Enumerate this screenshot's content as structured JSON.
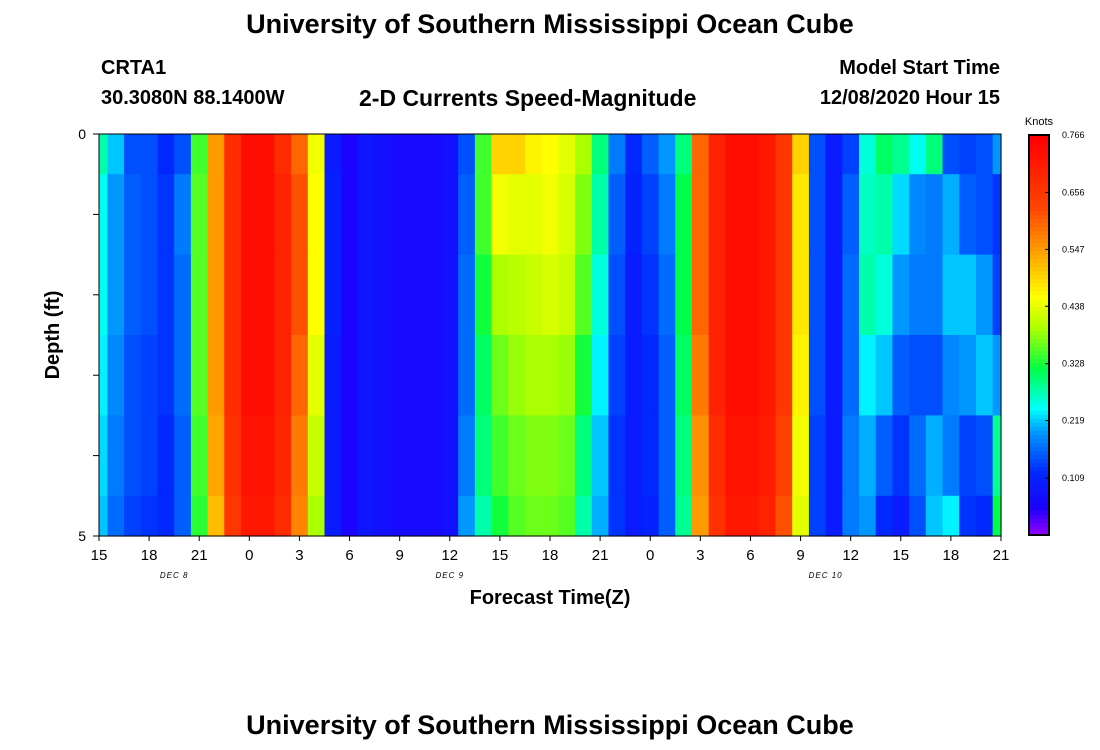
{
  "page": {
    "title": "University of Southern Mississippi Ocean Cube",
    "bottom_title": "University of Southern Mississippi Ocean Cube",
    "station_id": "CRTA1",
    "coords": "30.3080N 88.1400W",
    "plot_title": "2-D Currents Speed-Magnitude",
    "model_start_label": "Model Start Time",
    "model_start_value": "12/08/2020 Hour 15"
  },
  "chart_data": {
    "type": "heatmap",
    "title": "2-D Currents Speed-Magnitude",
    "xlabel": "Forecast Time(Z)",
    "ylabel": "Depth (ft)",
    "units": "Knots",
    "x_hours": [
      0,
      1,
      2,
      3,
      4,
      5,
      6,
      7,
      8,
      9,
      10,
      11,
      12,
      13,
      14,
      15,
      16,
      17,
      18,
      19,
      20,
      21,
      22,
      23,
      24,
      25,
      26,
      27,
      28,
      29,
      30,
      31,
      32,
      33,
      34,
      35,
      36,
      37,
      38,
      39,
      40,
      41,
      42,
      43,
      44,
      45,
      46,
      47,
      48,
      49,
      50,
      51,
      52,
      53,
      54
    ],
    "x_tick_labels": [
      "15",
      "18",
      "21",
      "0",
      "3",
      "6",
      "9",
      "12",
      "15",
      "18",
      "21",
      "0",
      "3",
      "6",
      "9",
      "12",
      "15",
      "18",
      "21"
    ],
    "day_labels": [
      {
        "text": "DEC 8",
        "hour": 4.5
      },
      {
        "text": "DEC 9",
        "hour": 21
      },
      {
        "text": "DEC 10",
        "hour": 43.5
      }
    ],
    "depth_bins": [
      "0-0.5",
      "0.5-1.5",
      "1.5-2.5",
      "2.5-3.5",
      "3.5-4.5",
      "4.5-5"
    ],
    "y_tick_labels": [
      "0",
      "5"
    ],
    "ylim": [
      0,
      5
    ],
    "colorbar": {
      "min": 0,
      "max": 0.766,
      "tick_values": [
        0.766,
        0.656,
        0.547,
        0.438,
        0.328,
        0.219,
        0.109
      ],
      "tick_labels": [
        "0.766",
        "0.656",
        "0.547",
        "0.438",
        "0.328",
        "0.219",
        "0.109"
      ]
    },
    "speeds_knots": [
      [
        0.28,
        0.22,
        0.15,
        0.15,
        0.12,
        0.15,
        0.35,
        0.55,
        0.68,
        0.74,
        0.74,
        0.68,
        0.6,
        0.45,
        0.1,
        0.06,
        0.09,
        0.08,
        0.07,
        0.07,
        0.07,
        0.08,
        0.15,
        0.35,
        0.5,
        0.5,
        0.47,
        0.46,
        0.44,
        0.4,
        0.3,
        0.18,
        0.12,
        0.16,
        0.2,
        0.3,
        0.6,
        0.7,
        0.74,
        0.74,
        0.72,
        0.66,
        0.5,
        0.15,
        0.1,
        0.14,
        0.26,
        0.31,
        0.29,
        0.25,
        0.3,
        0.15,
        0.14,
        0.15,
        0.2
      ],
      [
        0.25,
        0.2,
        0.16,
        0.15,
        0.13,
        0.18,
        0.36,
        0.55,
        0.68,
        0.74,
        0.74,
        0.7,
        0.62,
        0.46,
        0.11,
        0.06,
        0.09,
        0.08,
        0.07,
        0.07,
        0.07,
        0.08,
        0.16,
        0.35,
        0.45,
        0.44,
        0.44,
        0.45,
        0.43,
        0.38,
        0.28,
        0.16,
        0.11,
        0.14,
        0.18,
        0.32,
        0.6,
        0.7,
        0.74,
        0.74,
        0.72,
        0.66,
        0.48,
        0.15,
        0.1,
        0.16,
        0.27,
        0.28,
        0.23,
        0.19,
        0.18,
        0.21,
        0.16,
        0.15,
        0.13
      ],
      [
        0.25,
        0.2,
        0.16,
        0.15,
        0.13,
        0.17,
        0.36,
        0.55,
        0.68,
        0.74,
        0.74,
        0.7,
        0.62,
        0.46,
        0.11,
        0.06,
        0.09,
        0.08,
        0.07,
        0.07,
        0.07,
        0.08,
        0.17,
        0.33,
        0.4,
        0.41,
        0.42,
        0.43,
        0.42,
        0.36,
        0.26,
        0.15,
        0.1,
        0.13,
        0.17,
        0.32,
        0.6,
        0.7,
        0.74,
        0.74,
        0.72,
        0.66,
        0.48,
        0.15,
        0.1,
        0.17,
        0.28,
        0.26,
        0.2,
        0.18,
        0.18,
        0.22,
        0.22,
        0.2,
        0.14
      ],
      [
        0.24,
        0.19,
        0.15,
        0.14,
        0.13,
        0.17,
        0.36,
        0.55,
        0.68,
        0.74,
        0.74,
        0.7,
        0.6,
        0.44,
        0.1,
        0.06,
        0.09,
        0.08,
        0.07,
        0.07,
        0.07,
        0.08,
        0.17,
        0.31,
        0.37,
        0.39,
        0.4,
        0.4,
        0.39,
        0.33,
        0.24,
        0.14,
        0.1,
        0.12,
        0.16,
        0.31,
        0.58,
        0.7,
        0.74,
        0.74,
        0.72,
        0.66,
        0.47,
        0.15,
        0.1,
        0.17,
        0.24,
        0.22,
        0.16,
        0.15,
        0.15,
        0.19,
        0.2,
        0.22,
        0.2
      ],
      [
        0.23,
        0.18,
        0.15,
        0.14,
        0.12,
        0.16,
        0.35,
        0.54,
        0.67,
        0.73,
        0.73,
        0.69,
        0.58,
        0.42,
        0.1,
        0.06,
        0.09,
        0.08,
        0.07,
        0.07,
        0.07,
        0.08,
        0.18,
        0.3,
        0.35,
        0.37,
        0.38,
        0.38,
        0.37,
        0.3,
        0.22,
        0.13,
        0.1,
        0.12,
        0.16,
        0.3,
        0.56,
        0.68,
        0.73,
        0.73,
        0.71,
        0.64,
        0.45,
        0.14,
        0.1,
        0.18,
        0.21,
        0.16,
        0.13,
        0.17,
        0.21,
        0.18,
        0.14,
        0.15,
        0.29
      ],
      [
        0.22,
        0.17,
        0.14,
        0.13,
        0.12,
        0.16,
        0.34,
        0.52,
        0.66,
        0.72,
        0.72,
        0.68,
        0.57,
        0.4,
        0.1,
        0.06,
        0.09,
        0.08,
        0.07,
        0.07,
        0.07,
        0.08,
        0.2,
        0.28,
        0.33,
        0.36,
        0.37,
        0.37,
        0.36,
        0.28,
        0.21,
        0.13,
        0.1,
        0.11,
        0.16,
        0.29,
        0.55,
        0.67,
        0.72,
        0.72,
        0.7,
        0.62,
        0.44,
        0.14,
        0.1,
        0.18,
        0.2,
        0.12,
        0.1,
        0.15,
        0.22,
        0.24,
        0.13,
        0.12,
        0.32
      ]
    ]
  }
}
